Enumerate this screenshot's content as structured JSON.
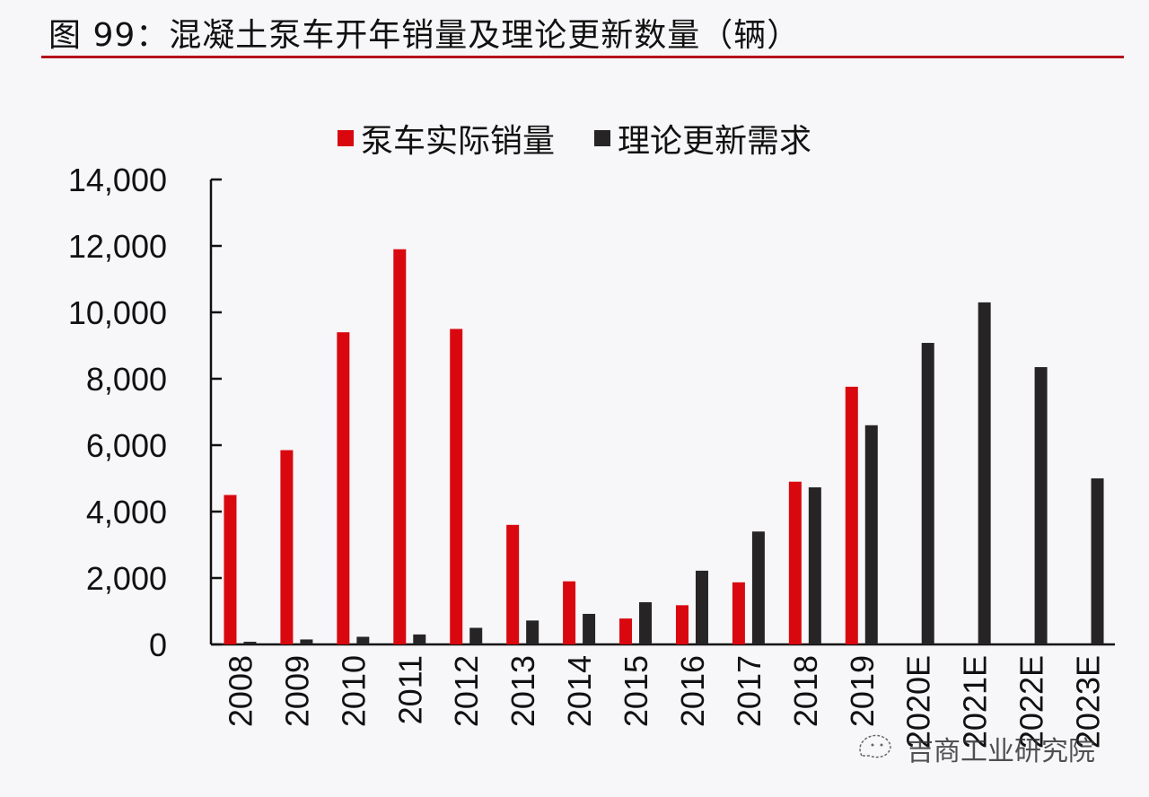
{
  "header": {
    "title": "图 99：混凝土泵车开年销量及理论更新数量（辆）",
    "rule_color": "#b3121c"
  },
  "watermark": "吉商工业研究院",
  "colors": {
    "actual": "#d9080f",
    "theory": "#262424"
  },
  "legend": [
    {
      "label": "泵车实际销量",
      "color": "#d9080f"
    },
    {
      "label": "理论更新需求",
      "color": "#262424"
    }
  ],
  "chart_data": {
    "type": "bar",
    "title": "图 99：混凝土泵车开年销量及理论更新数量（辆）",
    "xlabel": "",
    "ylabel": "",
    "ylim": [
      0,
      14000
    ],
    "yticks": [
      "0",
      "2,000",
      "4,000",
      "6,000",
      "8,000",
      "10,000",
      "12,000",
      "14,000"
    ],
    "grid": false,
    "legend_position": "top",
    "categories": [
      "2008",
      "2009",
      "2010",
      "2011",
      "2012",
      "2013",
      "2014",
      "2015",
      "2016",
      "2017",
      "2018",
      "2019",
      "2020E",
      "2021E",
      "2022E",
      "2023E"
    ],
    "series": [
      {
        "name": "泵车实际销量",
        "color": "#d9080f",
        "values": [
          4500,
          5850,
          9400,
          11900,
          9500,
          3600,
          1900,
          780,
          1180,
          1870,
          4900,
          7760,
          null,
          null,
          null,
          null
        ]
      },
      {
        "name": "理论更新需求",
        "color": "#262424",
        "values": [
          80,
          150,
          230,
          300,
          500,
          720,
          920,
          1270,
          2220,
          3400,
          4730,
          6600,
          9080,
          10300,
          8350,
          5000
        ]
      }
    ]
  }
}
